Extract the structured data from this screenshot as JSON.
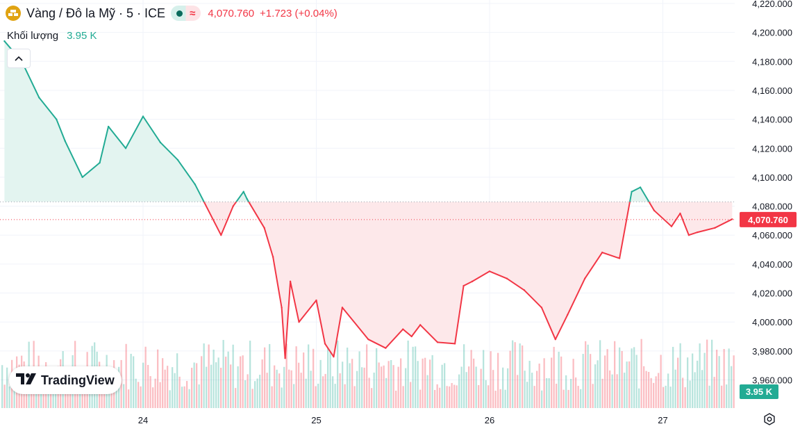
{
  "header": {
    "symbol": "Vàng / Đô la Mỹ · 5 · ICE",
    "delayed_symbol": "≈",
    "last_price": "4,070.760",
    "change": "+1.723 (+0.04%)"
  },
  "volume": {
    "label": "Khối lượng",
    "value": "3.95 K"
  },
  "branding": {
    "logo_text": "TradingView"
  },
  "colors": {
    "up": "#22ab94",
    "down": "#f23645",
    "up_fill": "#e3f4f0",
    "down_fill": "#fde8ea",
    "baseline": "#9aa0ad",
    "grid": "#f0f3fa",
    "axis_text": "#131722"
  },
  "chart_data": {
    "type": "line",
    "style": "baseline",
    "baseline_value": 4083,
    "x_ticks": [
      "24",
      "25",
      "26",
      "27"
    ],
    "y_ticks": [
      "4,220.000",
      "4,200.000",
      "4,180.000",
      "4,160.000",
      "4,140.000",
      "4,120.000",
      "4,100.000",
      "4,080.000",
      "4,060.000",
      "4,040.000",
      "4,020.000",
      "4,000.000",
      "3,980.000",
      "3,960.000"
    ],
    "ylim": [
      3954,
      4222
    ],
    "x": [
      23.2,
      23.3,
      23.4,
      23.5,
      23.55,
      23.65,
      23.75,
      23.8,
      23.9,
      24.0,
      24.1,
      24.2,
      24.3,
      24.45,
      24.52,
      24.58,
      24.6,
      24.7,
      24.75,
      24.8,
      24.82,
      24.85,
      24.9,
      25.0,
      25.05,
      25.1,
      25.15,
      25.3,
      25.4,
      25.5,
      25.55,
      25.6,
      25.7,
      25.8,
      25.85,
      25.9,
      26.0,
      26.1,
      26.2,
      26.3,
      26.38,
      26.45,
      26.55,
      26.65,
      26.75,
      26.82,
      26.87,
      26.95,
      27.05,
      27.1,
      27.15,
      27.2,
      27.3,
      27.4
    ],
    "values": [
      4194,
      4180,
      4155,
      4140,
      4125,
      4100,
      4110,
      4135,
      4120,
      4142,
      4124,
      4112,
      4095,
      4060,
      4080,
      4090,
      4085,
      4065,
      4045,
      4010,
      3975,
      4028,
      4000,
      4015,
      3985,
      3976,
      4010,
      3988,
      3982,
      3995,
      3990,
      3998,
      3986,
      3985,
      4025,
      4028,
      4035,
      4030,
      4022,
      4010,
      3988,
      4005,
      4030,
      4048,
      4044,
      4090,
      4093,
      4077,
      4066,
      4075,
      4060,
      4062,
      4065,
      4071
    ],
    "last_value": "4,070.760",
    "volume_label": "3.95 K"
  }
}
